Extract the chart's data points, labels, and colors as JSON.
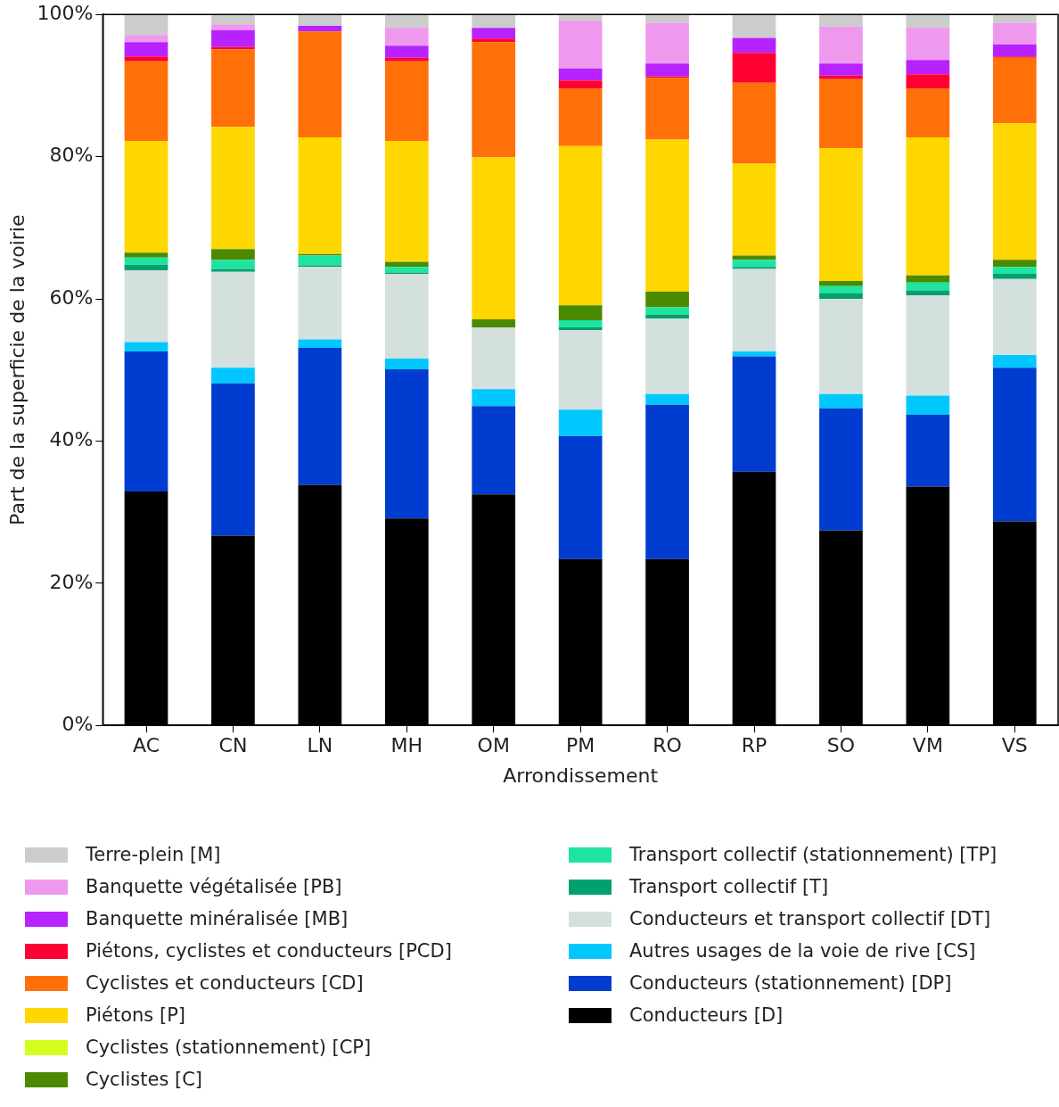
{
  "chart_data": {
    "type": "bar",
    "stacked": true,
    "xlabel": "Arrondissement",
    "ylabel": "Part de la superficie de la voirie",
    "categories": [
      "AC",
      "CN",
      "LN",
      "MH",
      "OM",
      "PM",
      "RO",
      "RP",
      "SO",
      "VM",
      "VS"
    ],
    "ylim": [
      0,
      100
    ],
    "yticks": [
      {
        "value": 0,
        "label": "0%"
      },
      {
        "value": 20,
        "label": "20%"
      },
      {
        "value": 40,
        "label": "40%"
      },
      {
        "value": 60,
        "label": "60%"
      },
      {
        "value": 80,
        "label": "80%"
      },
      {
        "value": 100,
        "label": "100%"
      }
    ],
    "grid": false,
    "legend": "bottom",
    "series": [
      {
        "name": "Conducteurs [D]",
        "color": "#000000",
        "values": [
          32.9,
          26.7,
          33.8,
          29.1,
          32.5,
          23.4,
          23.4,
          35.7,
          27.4,
          33.6,
          28.7
        ]
      },
      {
        "name": "Conducteurs (stationnement) [DP]",
        "color": "#003ccf",
        "values": [
          19.7,
          21.4,
          19.3,
          21.0,
          12.4,
          17.3,
          21.7,
          16.2,
          17.2,
          10.1,
          21.6
        ]
      },
      {
        "name": "Autres usages de la voie de rive [CS]",
        "color": "#00c8ff",
        "values": [
          1.3,
          2.2,
          1.2,
          1.5,
          2.4,
          3.7,
          1.5,
          0.7,
          2.0,
          2.7,
          1.8
        ]
      },
      {
        "name": "Conducteurs et transport collectif [DT]",
        "color": "#d3e0de",
        "values": [
          10.1,
          13.5,
          10.2,
          11.9,
          8.7,
          11.2,
          10.6,
          11.6,
          13.4,
          14.1,
          10.7
        ]
      },
      {
        "name": "Transport collectif [T]",
        "color": "#00a070",
        "values": [
          0.8,
          0.4,
          0.2,
          0.2,
          0,
          0.4,
          0.6,
          0.3,
          0.8,
          0.7,
          0.7
        ]
      },
      {
        "name": "Transport collectif (stationnement) [TP]",
        "color": "#1de5a0",
        "values": [
          1.0,
          1.3,
          1.4,
          0.8,
          0,
          1.0,
          1.0,
          1.0,
          1.0,
          1.1,
          1.0
        ]
      },
      {
        "name": "Cyclistes [C]",
        "color": "#4b8a00",
        "values": [
          0.7,
          1.5,
          0.2,
          0.7,
          1.1,
          2.1,
          2.2,
          0.6,
          0.7,
          1.0,
          1.0
        ]
      },
      {
        "name": "Cyclistes (stationnement) [CP]",
        "color": "#d4ff1e",
        "values": [
          0,
          0,
          0,
          0,
          0,
          0,
          0,
          0,
          0,
          0,
          0
        ]
      },
      {
        "name": "Piétons [P]",
        "color": "#ffd700",
        "values": [
          15.7,
          17.2,
          16.4,
          17.0,
          22.8,
          22.4,
          21.4,
          12.9,
          18.7,
          19.4,
          19.2
        ]
      },
      {
        "name": "Cyclistes et conducteurs [CD]",
        "color": "#ff7009",
        "values": [
          11.2,
          10.9,
          14.9,
          11.2,
          16.2,
          8.1,
          8.7,
          11.4,
          9.7,
          6.9,
          9.2
        ]
      },
      {
        "name": "Piétons, cyclistes et conducteurs [PCD]",
        "color": "#ff0033",
        "values": [
          0.7,
          0.3,
          0,
          0.5,
          0.5,
          1.1,
          0.2,
          4.2,
          0.5,
          2.0,
          0.2
        ]
      },
      {
        "name": "Banquette minéralisée [MB]",
        "color": "#b822ff",
        "values": [
          2.0,
          2.4,
          0.8,
          1.7,
          1.5,
          1.7,
          1.8,
          2.1,
          1.7,
          2.0,
          1.7
        ]
      },
      {
        "name": "Banquette végétalisée [PB]",
        "color": "#ee99ee",
        "values": [
          1.0,
          0.8,
          0,
          2.5,
          0,
          6.7,
          5.7,
          0,
          5.2,
          4.5,
          3.0
        ]
      },
      {
        "name": "Terre-plein [M]",
        "color": "#cccccc",
        "values": [
          2.9,
          1.4,
          1.6,
          1.9,
          1.9,
          0.9,
          1.2,
          3.3,
          1.7,
          1.9,
          1.2
        ]
      }
    ]
  }
}
